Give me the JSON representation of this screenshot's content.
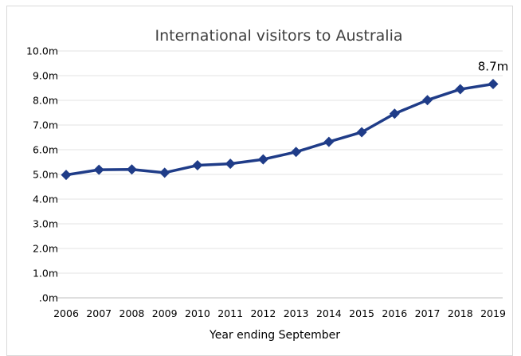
{
  "chart_data": {
    "type": "line",
    "title": "International visitors to Australia",
    "xlabel": "Year ending September",
    "ylabel": "",
    "x": [
      "2006",
      "2007",
      "2008",
      "2009",
      "2010",
      "2011",
      "2012",
      "2013",
      "2014",
      "2015",
      "2016",
      "2017",
      "2018",
      "2019"
    ],
    "y_tick_labels": [
      ".0m",
      "1.0m",
      "2.0m",
      "3.0m",
      "4.0m",
      "5.0m",
      "6.0m",
      "7.0m",
      "8.0m",
      "9.0m",
      "10.0m"
    ],
    "ylim": [
      0,
      10
    ],
    "grid": true,
    "legend": "none",
    "series": [
      {
        "values": [
          4.98,
          5.19,
          5.2,
          5.07,
          5.37,
          5.43,
          5.61,
          5.91,
          6.32,
          6.71,
          7.46,
          8.01,
          8.45,
          8.66
        ],
        "marker": "diamond",
        "color": "#1f3c88"
      }
    ],
    "annotations": [
      {
        "text": "8.7m",
        "target": "last-point"
      }
    ]
  }
}
